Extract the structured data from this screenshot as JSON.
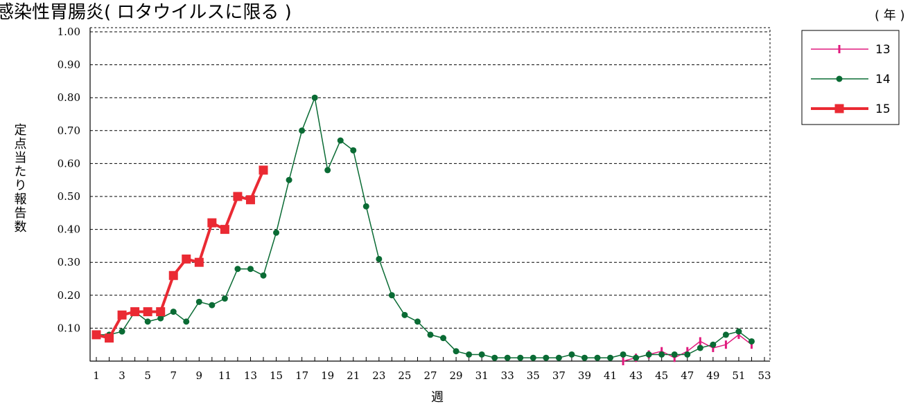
{
  "chart_data": {
    "type": "line",
    "title": "感染性胃腸炎( ロタウイルスに限る )",
    "unit_note": "( 年 )",
    "xlabel": "週",
    "ylabel": "定点当たり報告数",
    "ylim": [
      0,
      1.0
    ],
    "xlim": [
      1,
      53
    ],
    "yticks": [
      "0.10",
      "0.20",
      "0.30",
      "0.40",
      "0.50",
      "0.60",
      "0.70",
      "0.80",
      "0.90",
      "1.00"
    ],
    "xticks": [
      "1",
      "3",
      "5",
      "7",
      "9",
      "11",
      "13",
      "15",
      "17",
      "19",
      "21",
      "23",
      "25",
      "27",
      "29",
      "31",
      "33",
      "35",
      "37",
      "39",
      "41",
      "43",
      "45",
      "47",
      "49",
      "51",
      "53"
    ],
    "grid": "horizontal-dashed",
    "legend_position": "top-right",
    "series": [
      {
        "name": "13",
        "color": "#e0197d",
        "marker": "tick",
        "x": [
          42,
          43,
          44,
          45,
          46,
          47,
          48,
          49,
          50,
          51,
          52
        ],
        "values": [
          0.0,
          0.01,
          0.02,
          0.03,
          0.01,
          0.03,
          0.06,
          0.04,
          0.05,
          0.08,
          0.05
        ]
      },
      {
        "name": "14",
        "color": "#0a6b34",
        "marker": "circle",
        "x": [
          1,
          2,
          3,
          4,
          5,
          6,
          7,
          8,
          9,
          10,
          11,
          12,
          13,
          14,
          15,
          16,
          17,
          18,
          19,
          20,
          21,
          22,
          23,
          24,
          25,
          26,
          27,
          28,
          29,
          30,
          31,
          32,
          33,
          34,
          35,
          36,
          37,
          38,
          39,
          40,
          41,
          42,
          43,
          44,
          45,
          46,
          47,
          48,
          49,
          50,
          51,
          52
        ],
        "values": [
          0.08,
          0.08,
          0.09,
          0.15,
          0.12,
          0.13,
          0.15,
          0.12,
          0.18,
          0.17,
          0.19,
          0.28,
          0.28,
          0.26,
          0.39,
          0.55,
          0.7,
          0.8,
          0.58,
          0.67,
          0.64,
          0.47,
          0.31,
          0.2,
          0.14,
          0.12,
          0.08,
          0.07,
          0.03,
          0.02,
          0.02,
          0.01,
          0.01,
          0.01,
          0.01,
          0.01,
          0.01,
          0.02,
          0.01,
          0.01,
          0.01,
          0.02,
          0.01,
          0.02,
          0.02,
          0.02,
          0.02,
          0.04,
          0.05,
          0.08,
          0.09,
          0.06
        ]
      },
      {
        "name": "15",
        "color": "#ea2a33",
        "marker": "square",
        "x": [
          1,
          2,
          3,
          4,
          5,
          6,
          7,
          8,
          9,
          10,
          11,
          12,
          13,
          14
        ],
        "values": [
          0.08,
          0.07,
          0.14,
          0.15,
          0.15,
          0.15,
          0.26,
          0.31,
          0.3,
          0.42,
          0.4,
          0.5,
          0.49,
          0.58
        ]
      }
    ]
  }
}
